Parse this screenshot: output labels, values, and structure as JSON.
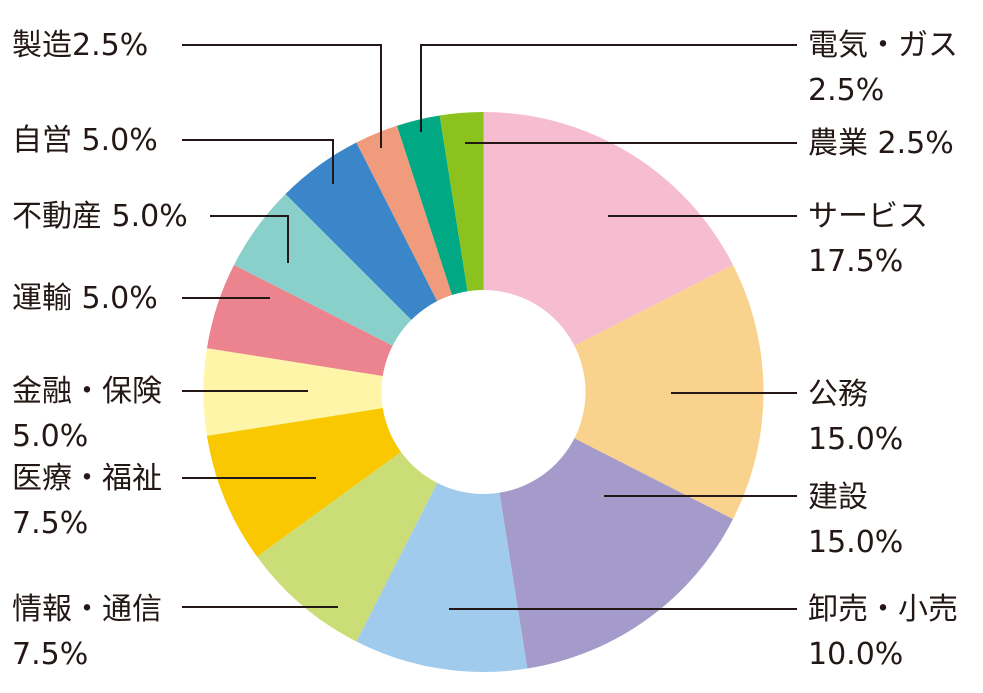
{
  "chart_data": {
    "type": "pie",
    "donut": true,
    "title": "",
    "slices": [
      {
        "label": "サービス",
        "value": 17.5,
        "value_label": "17.5%",
        "color": "#f6bccf"
      },
      {
        "label": "公務",
        "value": 15.0,
        "value_label": "15.0%",
        "color": "#f9d38d"
      },
      {
        "label": "建設",
        "value": 15.0,
        "value_label": "15.0%",
        "color": "#a59bcb"
      },
      {
        "label": "卸売・小売",
        "value": 10.0,
        "value_label": "10.0%",
        "color": "#a0cbec"
      },
      {
        "label": "情報・通信",
        "value": 7.5,
        "value_label": "7.5%",
        "color": "#cbdd76"
      },
      {
        "label": "医療・福祉",
        "value": 7.5,
        "value_label": "7.5%",
        "color": "#f9c800"
      },
      {
        "label": "金融・保険",
        "value": 5.0,
        "value_label": "5.0%",
        "color": "#fef5a8"
      },
      {
        "label": "運輸",
        "value": 5.0,
        "value_label": "5.0%",
        "color": "#ec848f"
      },
      {
        "label": "不動産",
        "value": 5.0,
        "value_label": "5.0%",
        "color": "#89cfca"
      },
      {
        "label": "自営",
        "value": 5.0,
        "value_label": "5.0%",
        "color": "#3b86c8"
      },
      {
        "label": "製造",
        "value": 2.5,
        "value_label": "2.5%",
        "color": "#f09c7c"
      },
      {
        "label": "電気・ガス",
        "value": 2.5,
        "value_label": "2.5%",
        "color": "#00a984"
      },
      {
        "label": "農業",
        "value": 2.5,
        "value_label": "2.5%",
        "color": "#8cc21e"
      }
    ]
  }
}
